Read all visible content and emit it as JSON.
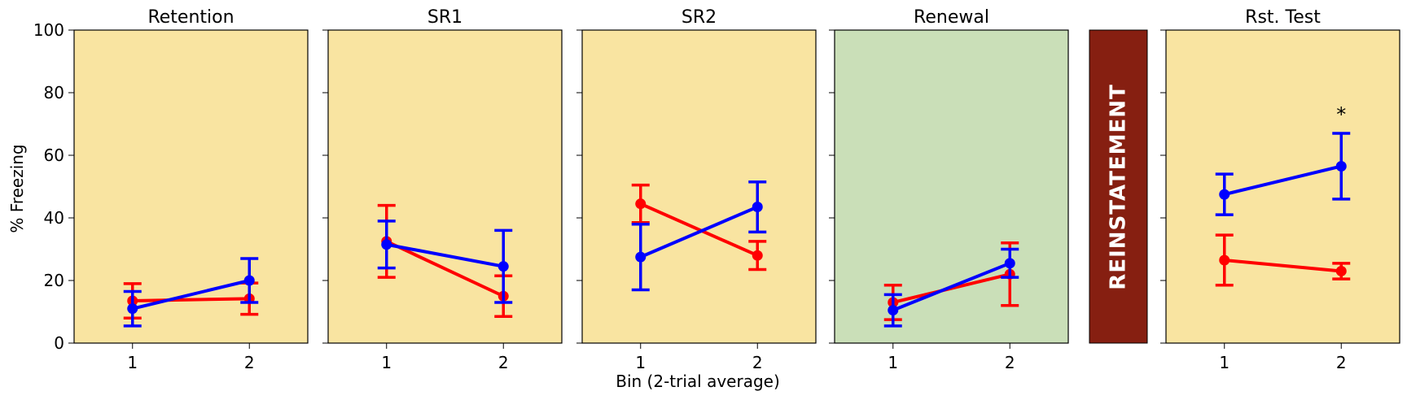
{
  "figure": {
    "ylabel": "% Freezing",
    "xlabel": "Bin (2-trial average)",
    "reinstatement_label": "REINSTATEMENT",
    "reinstatement_color": "#861F11"
  },
  "chart_data": [
    {
      "type": "line",
      "title": "Retention",
      "background": "#F9E4A1",
      "categories": [
        "1",
        "2"
      ],
      "ylim": [
        0,
        100
      ],
      "yticks": [
        0,
        20,
        40,
        60,
        80,
        100
      ],
      "series": [
        {
          "color": "#ff0000",
          "values": [
            13.5,
            14.2
          ],
          "err": [
            5.5,
            5.0
          ]
        },
        {
          "color": "#0000ff",
          "values": [
            11.0,
            20.0
          ],
          "err": [
            5.5,
            7.0
          ]
        }
      ],
      "annotation": null
    },
    {
      "type": "line",
      "title": "SR1",
      "background": "#F9E4A1",
      "categories": [
        "1",
        "2"
      ],
      "ylim": [
        0,
        100
      ],
      "yticks": [
        0,
        20,
        40,
        60,
        80,
        100
      ],
      "series": [
        {
          "color": "#ff0000",
          "values": [
            32.5,
            15.0
          ],
          "err": [
            11.5,
            6.5
          ]
        },
        {
          "color": "#0000ff",
          "values": [
            31.5,
            24.5
          ],
          "err": [
            7.5,
            11.5
          ]
        }
      ],
      "annotation": null
    },
    {
      "type": "line",
      "title": "SR2",
      "background": "#F9E4A1",
      "categories": [
        "1",
        "2"
      ],
      "ylim": [
        0,
        100
      ],
      "yticks": [
        0,
        20,
        40,
        60,
        80,
        100
      ],
      "series": [
        {
          "color": "#ff0000",
          "values": [
            44.5,
            28.0
          ],
          "err": [
            6.0,
            4.5
          ]
        },
        {
          "color": "#0000ff",
          "values": [
            27.5,
            43.5
          ],
          "err": [
            10.5,
            8.0
          ]
        }
      ],
      "annotation": null
    },
    {
      "type": "line",
      "title": "Renewal",
      "background": "#CADFB8",
      "categories": [
        "1",
        "2"
      ],
      "ylim": [
        0,
        100
      ],
      "yticks": [
        0,
        20,
        40,
        60,
        80,
        100
      ],
      "series": [
        {
          "color": "#ff0000",
          "values": [
            13.0,
            22.0
          ],
          "err": [
            5.5,
            10.0
          ]
        },
        {
          "color": "#0000ff",
          "values": [
            10.5,
            25.5
          ],
          "err": [
            5.0,
            4.5
          ]
        }
      ],
      "annotation": null
    },
    {
      "type": "line",
      "title": "Rst. Test",
      "background": "#F9E4A1",
      "categories": [
        "1",
        "2"
      ],
      "ylim": [
        0,
        100
      ],
      "yticks": [
        0,
        20,
        40,
        60,
        80,
        100
      ],
      "series": [
        {
          "color": "#ff0000",
          "values": [
            26.5,
            23.0
          ],
          "err": [
            8.0,
            2.5
          ]
        },
        {
          "color": "#0000ff",
          "values": [
            47.5,
            56.5
          ],
          "err": [
            6.5,
            10.5
          ]
        }
      ],
      "annotation": {
        "text": "*",
        "x": "2",
        "y": 73
      }
    }
  ]
}
